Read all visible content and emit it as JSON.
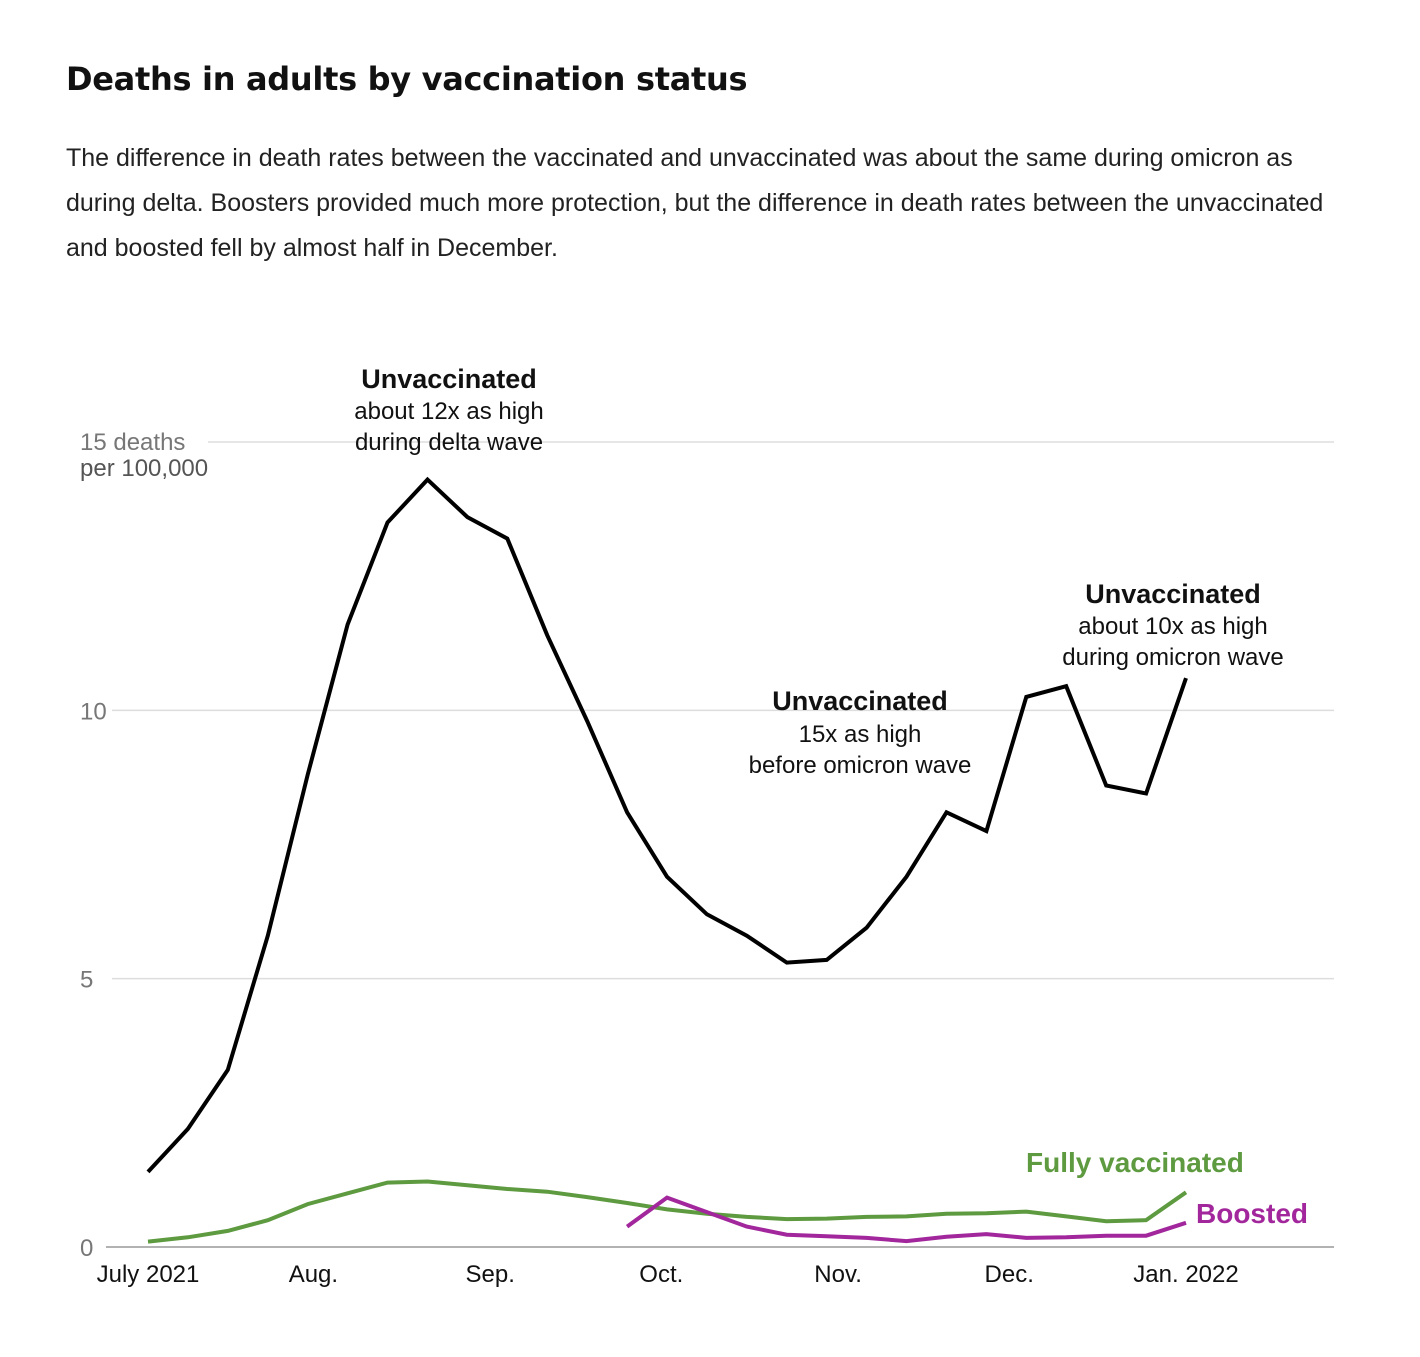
{
  "header": {
    "title": "Deaths in adults by vaccination status",
    "subtitle": "The difference in death rates between the vaccinated and unvaccinated was about the same during omicron as during delta. Boosters provided much more protection, but the difference in death rates between the unvaccinated and boosted fell by almost half in December."
  },
  "chart_data": {
    "type": "line",
    "title": "Deaths in adults by vaccination status",
    "ylabel": "15 deaths per 100,000",
    "y_unit_line1": "15 deaths",
    "y_unit_line2": "per 100,000",
    "ylim": [
      0,
      15
    ],
    "yticks": [
      {
        "value": 0,
        "label": "0"
      },
      {
        "value": 5,
        "label": "5"
      },
      {
        "value": 10,
        "label": "10"
      }
    ],
    "xlim": [
      "2021-07-03",
      "2022-01-30"
    ],
    "xticks": [
      {
        "date": "2021-07-03",
        "label": "July 2021"
      },
      {
        "date": "2021-08-01",
        "label": "Aug."
      },
      {
        "date": "2021-09-01",
        "label": "Sep."
      },
      {
        "date": "2021-10-01",
        "label": "Oct."
      },
      {
        "date": "2021-11-01",
        "label": "Nov."
      },
      {
        "date": "2021-12-01",
        "label": "Dec."
      },
      {
        "date": "2022-01-01",
        "label": "Jan. 2022"
      }
    ],
    "grid": true,
    "series": [
      {
        "name": "Unvaccinated",
        "color": "#000000",
        "x": [
          "2021-07-03",
          "2021-07-10",
          "2021-07-17",
          "2021-07-24",
          "2021-07-31",
          "2021-08-07",
          "2021-08-14",
          "2021-08-21",
          "2021-08-28",
          "2021-09-04",
          "2021-09-11",
          "2021-09-18",
          "2021-09-25",
          "2021-10-02",
          "2021-10-09",
          "2021-10-16",
          "2021-10-23",
          "2021-10-30",
          "2021-11-06",
          "2021-11-13",
          "2021-11-20",
          "2021-11-27",
          "2021-12-04",
          "2021-12-11",
          "2021-12-18",
          "2021-12-25",
          "2022-01-01"
        ],
        "y": [
          1.4,
          2.2,
          3.3,
          5.8,
          8.8,
          11.6,
          13.5,
          14.3,
          13.6,
          13.2,
          11.4,
          9.8,
          8.1,
          6.9,
          6.2,
          5.8,
          5.3,
          5.35,
          5.95,
          6.9,
          8.1,
          7.75,
          10.25,
          10.45,
          8.6,
          8.45,
          10.6
        ]
      },
      {
        "name": "Fully vaccinated",
        "color": "#5e9a40",
        "x": [
          "2021-07-03",
          "2021-07-10",
          "2021-07-17",
          "2021-07-24",
          "2021-07-31",
          "2021-08-07",
          "2021-08-14",
          "2021-08-21",
          "2021-08-28",
          "2021-09-04",
          "2021-09-11",
          "2021-09-18",
          "2021-09-25",
          "2021-10-02",
          "2021-10-09",
          "2021-10-16",
          "2021-10-23",
          "2021-10-30",
          "2021-11-06",
          "2021-11-13",
          "2021-11-20",
          "2021-11-27",
          "2021-12-04",
          "2021-12-11",
          "2021-12-18",
          "2021-12-25",
          "2022-01-01"
        ],
        "y": [
          0.1,
          0.18,
          0.3,
          0.5,
          0.8,
          1.0,
          1.2,
          1.22,
          1.15,
          1.08,
          1.03,
          0.93,
          0.82,
          0.7,
          0.62,
          0.56,
          0.52,
          0.53,
          0.56,
          0.57,
          0.62,
          0.63,
          0.66,
          0.57,
          0.48,
          0.5,
          1.02
        ]
      },
      {
        "name": "Boosted",
        "color": "#a2279c",
        "x": [
          "2021-09-25",
          "2021-10-02",
          "2021-10-09",
          "2021-10-16",
          "2021-10-23",
          "2021-10-30",
          "2021-11-06",
          "2021-11-13",
          "2021-11-20",
          "2021-11-27",
          "2021-12-04",
          "2021-12-11",
          "2021-12-18",
          "2021-12-25",
          "2022-01-01"
        ],
        "y": [
          0.38,
          0.92,
          0.65,
          0.38,
          0.23,
          0.2,
          0.17,
          0.11,
          0.19,
          0.24,
          0.17,
          0.18,
          0.21,
          0.21,
          0.45
        ]
      }
    ],
    "annotations": [
      {
        "head": "Unvaccinated",
        "line1": "about 12x as high",
        "line2": "during delta wave"
      },
      {
        "head": "Unvaccinated",
        "line1": "15x as high",
        "line2": "before omicron wave"
      },
      {
        "head": "Unvaccinated",
        "line1": "about 10x as high",
        "line2": "during omicron wave"
      }
    ],
    "series_labels": [
      {
        "text": "Fully vaccinated",
        "color": "#5e9a40"
      },
      {
        "text": "Boosted",
        "color": "#a2279c"
      }
    ]
  }
}
